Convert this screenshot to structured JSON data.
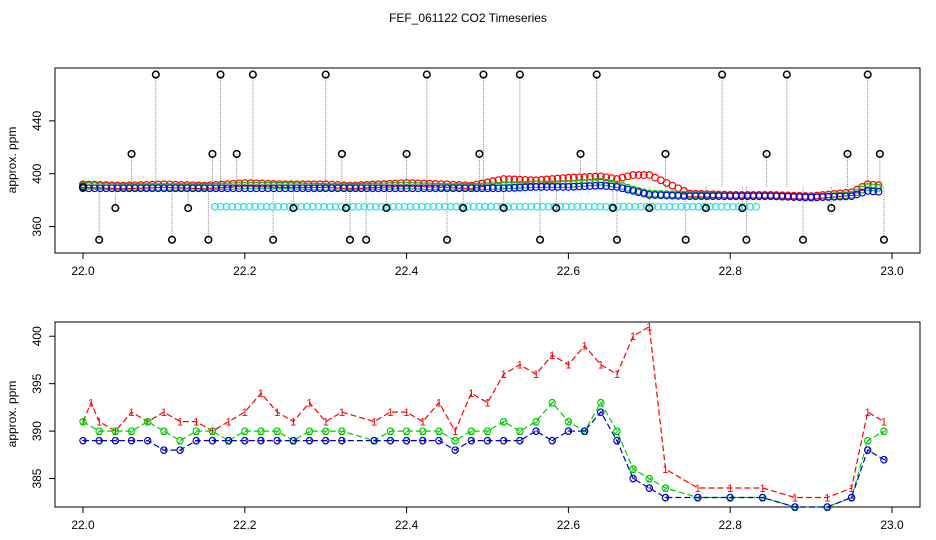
{
  "figure_title": "FEF_061122  CO2 Timeseries",
  "chart_data": [
    {
      "type": "scatter",
      "panel": "top",
      "title": "",
      "xlabel": "",
      "ylabel": "approx. ppm",
      "xlim": [
        22.0,
        23.0
      ],
      "ylim": [
        340,
        480
      ],
      "x_ticks": [
        22.0,
        22.2,
        22.4,
        22.6,
        22.8,
        23.0
      ],
      "x_tick_labels": [
        "22.0",
        "22.2",
        "22.4",
        "22.6",
        "22.8",
        "23.0"
      ],
      "y_ticks": [
        360,
        400,
        440
      ],
      "y_tick_labels": [
        "360",
        "400",
        "440"
      ],
      "series": [
        {
          "name": "raw (black circles, dotted gray)",
          "color": "#000000",
          "line_color": "#8c8c8c",
          "x": [
            22.0,
            22.02,
            22.04,
            22.06,
            22.09,
            22.11,
            22.13,
            22.155,
            22.16,
            22.17,
            22.19,
            22.21,
            22.235,
            22.26,
            22.3,
            22.32,
            22.325,
            22.33,
            22.35,
            22.375,
            22.4,
            22.425,
            22.45,
            22.47,
            22.49,
            22.495,
            22.52,
            22.54,
            22.565,
            22.585,
            22.615,
            22.635,
            22.655,
            22.66,
            22.7,
            22.72,
            22.745,
            22.77,
            22.79,
            22.815,
            22.82,
            22.845,
            22.87,
            22.89,
            22.925,
            22.945,
            22.97,
            22.985,
            22.99
          ],
          "y": [
            390,
            350,
            374,
            415,
            475,
            350,
            374,
            350,
            415,
            475,
            415,
            475,
            350,
            374,
            475,
            415,
            374,
            350,
            350,
            374,
            415,
            475,
            350,
            374,
            415,
            475,
            374,
            475,
            350,
            374,
            415,
            475,
            374,
            350,
            374,
            415,
            350,
            374,
            475,
            374,
            350,
            415,
            475,
            350,
            374,
            415,
            475,
            415,
            350
          ]
        },
        {
          "name": "series 1 (red circles)",
          "color": "#ff0000",
          "x": [
            22.0,
            22.05,
            22.1,
            22.15,
            22.2,
            22.25,
            22.3,
            22.33,
            22.4,
            22.45,
            22.48,
            22.52,
            22.56,
            22.6,
            22.64,
            22.66,
            22.68,
            22.7,
            22.75,
            22.8,
            22.85,
            22.9,
            22.95,
            22.97,
            22.99
          ],
          "y": [
            392,
            391,
            392,
            391,
            393,
            392,
            392,
            391,
            393,
            392,
            391,
            396,
            395,
            397,
            398,
            396,
            399,
            399,
            385,
            384,
            384,
            383,
            386,
            392,
            391
          ]
        },
        {
          "name": "series 2 (green circles)",
          "color": "#00cd00",
          "x": [
            22.0,
            22.05,
            22.1,
            22.15,
            22.2,
            22.25,
            22.3,
            22.33,
            22.4,
            22.45,
            22.48,
            22.52,
            22.56,
            22.6,
            22.64,
            22.66,
            22.68,
            22.7,
            22.75,
            22.8,
            22.85,
            22.9,
            22.95,
            22.97,
            22.99
          ],
          "y": [
            391,
            390,
            390,
            390,
            391,
            391,
            390,
            390,
            391,
            390,
            390,
            391,
            392,
            392,
            394,
            392,
            388,
            385,
            384,
            383,
            383,
            382,
            384,
            390,
            389
          ]
        },
        {
          "name": "series 3 (blue circles)",
          "color": "#0000ff",
          "x": [
            22.0,
            22.05,
            22.1,
            22.15,
            22.2,
            22.25,
            22.3,
            22.33,
            22.4,
            22.45,
            22.48,
            22.52,
            22.56,
            22.6,
            22.64,
            22.66,
            22.68,
            22.7,
            22.75,
            22.8,
            22.85,
            22.9,
            22.95,
            22.97,
            22.99
          ],
          "y": [
            389,
            389,
            389,
            389,
            389,
            389,
            389,
            389,
            389,
            389,
            389,
            389,
            390,
            390,
            391,
            390,
            387,
            384,
            383,
            383,
            383,
            382,
            383,
            387,
            386
          ]
        },
        {
          "name": "series 4 (cyan circles)",
          "color": "#33e0e0",
          "x": [
            22.163,
            22.497,
            22.832
          ],
          "y": [
            375,
            375,
            375
          ]
        }
      ]
    },
    {
      "type": "line",
      "panel": "bottom",
      "title": "",
      "xlabel": "",
      "ylabel": "approx. ppm",
      "xlim": [
        22.0,
        23.0
      ],
      "ylim": [
        382,
        401.5
      ],
      "x_ticks": [
        22.0,
        22.2,
        22.4,
        22.6,
        22.8,
        23.0
      ],
      "x_tick_labels": [
        "22.0",
        "22.2",
        "22.4",
        "22.6",
        "22.8",
        "23.0"
      ],
      "y_ticks": [
        385,
        390,
        395,
        400
      ],
      "y_tick_labels": [
        "385",
        "390",
        "395",
        "400"
      ],
      "series": [
        {
          "name": "1",
          "marker": "1",
          "color": "#ff0000",
          "x": [
            22.0,
            22.01,
            22.02,
            22.04,
            22.06,
            22.08,
            22.1,
            22.12,
            22.14,
            22.16,
            22.18,
            22.2,
            22.22,
            22.24,
            22.26,
            22.28,
            22.3,
            22.32,
            22.36,
            22.38,
            22.4,
            22.42,
            22.44,
            22.46,
            22.48,
            22.5,
            22.52,
            22.54,
            22.56,
            22.58,
            22.6,
            22.62,
            22.64,
            22.66,
            22.68,
            22.7,
            22.72,
            22.76,
            22.8,
            22.84,
            22.88,
            22.92,
            22.95,
            22.97,
            22.99
          ],
          "y": [
            391,
            393,
            391,
            390,
            392,
            391,
            392,
            391,
            391,
            390,
            391,
            392,
            394,
            392,
            391,
            393,
            391,
            392,
            391,
            392,
            392,
            391,
            393,
            390,
            394,
            393,
            396,
            397,
            396,
            398,
            397,
            399,
            397,
            396,
            400,
            401,
            386,
            384,
            384,
            384,
            383,
            383,
            384,
            392,
            391
          ]
        },
        {
          "name": "2",
          "marker": "2",
          "color": "#00cd00",
          "x": [
            22.0,
            22.02,
            22.04,
            22.06,
            22.08,
            22.1,
            22.12,
            22.14,
            22.16,
            22.18,
            22.2,
            22.22,
            22.24,
            22.26,
            22.28,
            22.3,
            22.32,
            22.36,
            22.38,
            22.4,
            22.42,
            22.44,
            22.46,
            22.48,
            22.5,
            22.52,
            22.54,
            22.56,
            22.58,
            22.6,
            22.62,
            22.64,
            22.66,
            22.68,
            22.7,
            22.72,
            22.76,
            22.8,
            22.84,
            22.88,
            22.92,
            22.95,
            22.97,
            22.99
          ],
          "y": [
            391,
            390,
            390,
            390,
            391,
            390,
            389,
            390,
            390,
            389,
            390,
            390,
            390,
            389,
            390,
            390,
            390,
            389,
            390,
            390,
            390,
            390,
            389,
            390,
            390,
            391,
            390,
            391,
            393,
            391,
            390,
            393,
            390,
            386,
            385,
            384,
            383,
            383,
            383,
            382,
            382,
            383,
            389,
            390
          ]
        },
        {
          "name": "3",
          "marker": "3",
          "color": "#0000cd",
          "x": [
            22.0,
            22.02,
            22.04,
            22.06,
            22.08,
            22.1,
            22.12,
            22.14,
            22.16,
            22.18,
            22.2,
            22.22,
            22.24,
            22.26,
            22.28,
            22.3,
            22.32,
            22.36,
            22.38,
            22.4,
            22.42,
            22.44,
            22.46,
            22.48,
            22.5,
            22.52,
            22.54,
            22.56,
            22.58,
            22.6,
            22.62,
            22.64,
            22.66,
            22.68,
            22.7,
            22.72,
            22.76,
            22.8,
            22.84,
            22.88,
            22.92,
            22.95,
            22.97,
            22.99
          ],
          "y": [
            389,
            389,
            389,
            389,
            389,
            388,
            388,
            389,
            389,
            389,
            389,
            389,
            389,
            389,
            389,
            389,
            389,
            389,
            389,
            389,
            389,
            389,
            388,
            389,
            389,
            389,
            389,
            390,
            389,
            390,
            390,
            392,
            389,
            385,
            384,
            383,
            383,
            383,
            383,
            382,
            382,
            383,
            388,
            387
          ]
        }
      ]
    }
  ]
}
